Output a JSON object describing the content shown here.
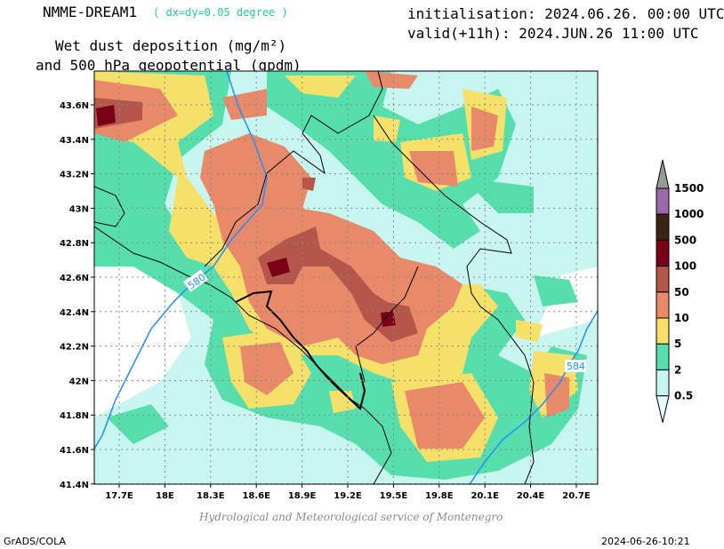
{
  "header": {
    "model": "NMME-DREAM1",
    "resolution": "( dx=dy=0.05 degree )",
    "initialisation": "initialisation: 2024.06.26. 00:00 UTC",
    "valid": "valid(+11h): 2024.JUN.26 11:00 UTC",
    "subtitle_line1": "Wet dust deposition (mg/m²)",
    "subtitle_line2": "and 500 hPa geopotential (gpdm)"
  },
  "map": {
    "lon_ticks": [
      "17.7E",
      "18E",
      "18.3E",
      "18.6E",
      "18.9E",
      "19.2E",
      "19.5E",
      "19.8E",
      "20.1E",
      "20.4E",
      "20.7E"
    ],
    "lat_ticks": [
      "43.6N",
      "43.4N",
      "43.2N",
      "43N",
      "42.8N",
      "42.6N",
      "42.4N",
      "42.2N",
      "42N",
      "41.8N",
      "41.6N",
      "41.4N"
    ],
    "contour_labels": [
      "580",
      "584"
    ],
    "contour_color": "#1e90ff",
    "border_color": "#000000"
  },
  "colorbar": {
    "labels": [
      "1500",
      "1000",
      "500",
      "100",
      "50",
      "10",
      "5",
      "2",
      "0.5"
    ],
    "colors": [
      "#9a6aa8",
      "#3b2414",
      "#7a0018",
      "#b5564a",
      "#e8896a",
      "#f5e06a",
      "#56dfad",
      "#c8f5ef",
      "#e6fbf8"
    ],
    "arrow_top_color": "#999999"
  },
  "footer": {
    "credit": "Hydrological and Meteorological service of Montenegro",
    "left": "GrADS/COLA",
    "right": "2024-06-26-10:21"
  }
}
